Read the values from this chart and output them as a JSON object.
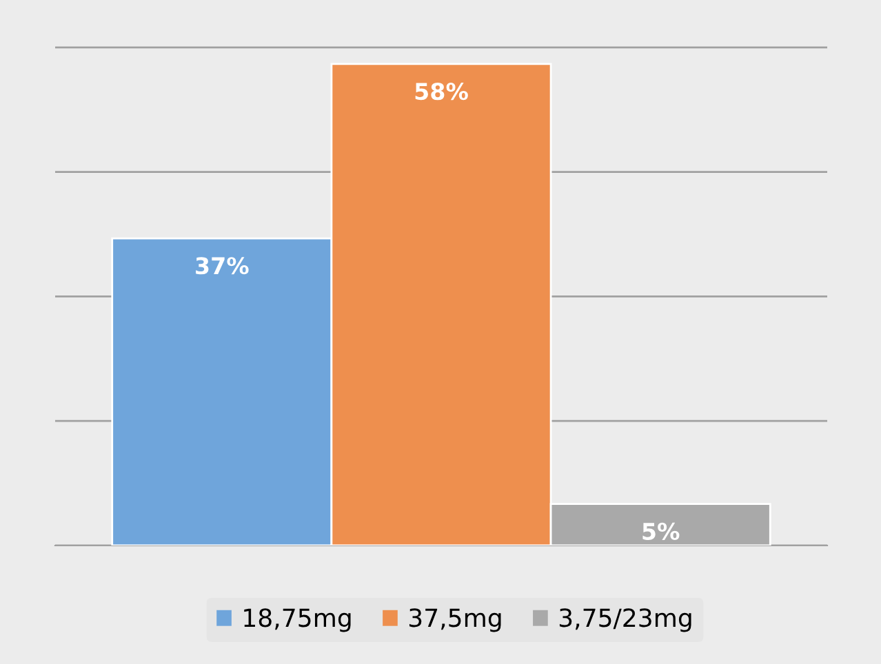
{
  "chart_data": {
    "type": "bar",
    "categories": [
      null
    ],
    "series": [
      {
        "name": "18,75mg",
        "color": "#6fa5db",
        "values": [
          37
        ],
        "value_labels": [
          "37%"
        ]
      },
      {
        "name": "37,5mg",
        "color": "#ee8f4e",
        "values": [
          58
        ],
        "value_labels": [
          "58%"
        ]
      },
      {
        "name": "3,75/23mg",
        "color": "#a9a9a9",
        "values": [
          5
        ],
        "value_labels": [
          "5%"
        ]
      }
    ],
    "grid": "y",
    "legend": "bottom"
  }
}
